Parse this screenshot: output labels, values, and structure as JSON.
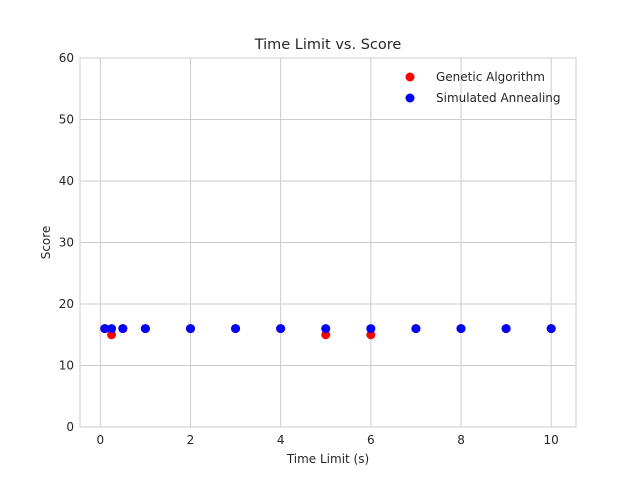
{
  "chart_data": {
    "type": "scatter",
    "title": "Time Limit vs. Score",
    "xlabel": "Time Limit (s)",
    "ylabel": "Score",
    "xlim": [
      -0.45,
      10.55
    ],
    "ylim": [
      0,
      60
    ],
    "xticks": [
      0,
      2,
      4,
      6,
      8,
      10
    ],
    "yticks": [
      0,
      10,
      20,
      30,
      40,
      50,
      60
    ],
    "grid": true,
    "legend_position": "top-right",
    "series": [
      {
        "name": "Genetic Algorithm",
        "color": "#ff0000",
        "points": [
          {
            "x": 0.1,
            "y": 16
          },
          {
            "x": 0.25,
            "y": 15
          },
          {
            "x": 0.5,
            "y": 16
          },
          {
            "x": 1,
            "y": 16
          },
          {
            "x": 2,
            "y": 16
          },
          {
            "x": 3,
            "y": 16
          },
          {
            "x": 4,
            "y": 16
          },
          {
            "x": 5,
            "y": 15
          },
          {
            "x": 6,
            "y": 15
          },
          {
            "x": 7,
            "y": 16
          },
          {
            "x": 8,
            "y": 16
          },
          {
            "x": 9,
            "y": 16
          },
          {
            "x": 10,
            "y": 16
          }
        ]
      },
      {
        "name": "Simulated Annealing",
        "color": "#0000ff",
        "points": [
          {
            "x": 0.1,
            "y": 16
          },
          {
            "x": 0.25,
            "y": 16
          },
          {
            "x": 0.5,
            "y": 16
          },
          {
            "x": 1,
            "y": 16
          },
          {
            "x": 2,
            "y": 16
          },
          {
            "x": 3,
            "y": 16
          },
          {
            "x": 4,
            "y": 16
          },
          {
            "x": 5,
            "y": 16
          },
          {
            "x": 6,
            "y": 16
          },
          {
            "x": 7,
            "y": 16
          },
          {
            "x": 8,
            "y": 16
          },
          {
            "x": 9,
            "y": 16
          },
          {
            "x": 10,
            "y": 16
          }
        ]
      }
    ]
  }
}
